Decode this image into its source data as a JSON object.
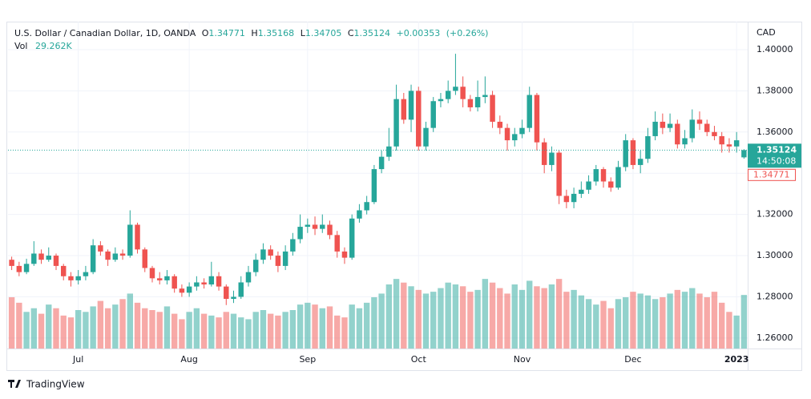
{
  "header": {
    "symbol": "U.S. Dollar / Canadian Dollar, 1D, OANDA",
    "o": "O",
    "h": "H",
    "l": "L",
    "c": "C",
    "change": "+0.00353",
    "change_pct": "(+0.26%)",
    "vol": "Vol",
    "vol_value": "29.262K",
    "countdown": "14:50:08",
    "currency": "CAD",
    "brand": "TradingView"
  },
  "chart_data": {
    "type": "candlestick",
    "up_color": "#26a69a",
    "down_color": "#ef5350",
    "categories": [
      null,
      null,
      null,
      null,
      null,
      null,
      null,
      null,
      null,
      "Jul",
      null,
      null,
      null,
      null,
      null,
      null,
      null,
      null,
      null,
      null,
      null,
      null,
      null,
      null,
      "Aug",
      null,
      null,
      null,
      null,
      null,
      null,
      null,
      null,
      null,
      null,
      null,
      null,
      null,
      null,
      null,
      "Sep",
      null,
      null,
      null,
      null,
      null,
      null,
      null,
      null,
      null,
      null,
      null,
      null,
      null,
      null,
      "Oct",
      null,
      null,
      null,
      null,
      null,
      null,
      null,
      null,
      null,
      null,
      null,
      null,
      null,
      "Nov",
      null,
      null,
      null,
      null,
      null,
      null,
      null,
      null,
      null,
      null,
      null,
      null,
      null,
      null,
      "Dec",
      null,
      null,
      null,
      null,
      null,
      null,
      null,
      null,
      null,
      null,
      null,
      null,
      null,
      "2023",
      null
    ],
    "open": [
      1.298,
      1.295,
      1.292,
      1.296,
      1.301,
      1.298,
      1.3,
      1.295,
      1.29,
      1.288,
      1.29,
      1.292,
      1.305,
      1.302,
      1.298,
      1.301,
      1.3,
      1.315,
      1.303,
      1.294,
      1.289,
      1.288,
      1.29,
      1.284,
      1.282,
      1.285,
      1.287,
      1.286,
      1.29,
      1.285,
      1.279,
      1.28,
      1.287,
      1.292,
      1.298,
      1.303,
      1.3,
      1.295,
      1.302,
      1.308,
      1.314,
      1.315,
      1.313,
      1.315,
      1.31,
      1.302,
      1.299,
      1.318,
      1.322,
      1.326,
      1.342,
      1.348,
      1.353,
      1.376,
      1.366,
      1.38,
      1.353,
      1.362,
      1.375,
      1.376,
      1.38,
      1.382,
      1.376,
      1.372,
      1.377,
      1.378,
      1.365,
      1.362,
      1.356,
      1.359,
      1.362,
      1.378,
      1.355,
      1.344,
      1.35,
      1.329,
      1.326,
      1.33,
      1.332,
      1.336,
      1.342,
      1.336,
      1.333,
      1.343,
      1.356,
      1.344,
      1.347,
      1.358,
      1.365,
      1.362,
      1.364,
      1.354,
      1.357,
      1.366,
      1.364,
      1.36,
      1.358,
      1.354,
      1.353,
      1.34771
    ],
    "high": [
      1.2995,
      1.297,
      1.2985,
      1.307,
      1.303,
      1.304,
      1.301,
      1.296,
      1.292,
      1.293,
      1.295,
      1.308,
      1.307,
      1.303,
      1.304,
      1.303,
      1.322,
      1.316,
      1.304,
      1.295,
      1.292,
      1.293,
      1.291,
      1.286,
      1.287,
      1.29,
      1.289,
      1.297,
      1.292,
      1.286,
      1.283,
      1.29,
      1.295,
      1.301,
      1.306,
      1.305,
      1.302,
      1.305,
      1.311,
      1.32,
      1.318,
      1.319,
      1.32,
      1.317,
      1.312,
      1.304,
      1.32,
      1.325,
      1.329,
      1.344,
      1.351,
      1.362,
      1.383,
      1.379,
      1.383,
      1.382,
      1.365,
      1.377,
      1.379,
      1.385,
      1.398,
      1.387,
      1.378,
      1.385,
      1.387,
      1.38,
      1.368,
      1.364,
      1.362,
      1.366,
      1.382,
      1.379,
      1.357,
      1.353,
      1.351,
      1.332,
      1.333,
      1.336,
      1.339,
      1.344,
      1.343,
      1.338,
      1.346,
      1.359,
      1.357,
      1.351,
      1.362,
      1.37,
      1.369,
      1.369,
      1.366,
      1.361,
      1.371,
      1.37,
      1.366,
      1.363,
      1.36,
      1.357,
      1.36,
      1.35168
    ],
    "low": [
      1.293,
      1.29,
      1.291,
      1.295,
      1.296,
      1.297,
      1.293,
      1.288,
      1.285,
      1.286,
      1.288,
      1.291,
      1.3,
      1.295,
      1.297,
      1.298,
      1.299,
      1.301,
      1.292,
      1.287,
      1.286,
      1.286,
      1.282,
      1.28,
      1.28,
      1.283,
      1.284,
      1.285,
      1.283,
      1.276,
      1.277,
      1.279,
      1.285,
      1.29,
      1.296,
      1.298,
      1.292,
      1.293,
      1.3,
      1.306,
      1.311,
      1.31,
      1.311,
      1.308,
      1.299,
      1.296,
      1.298,
      1.316,
      1.32,
      1.325,
      1.34,
      1.346,
      1.351,
      1.364,
      1.36,
      1.351,
      1.351,
      1.36,
      1.372,
      1.374,
      1.378,
      1.372,
      1.37,
      1.37,
      1.374,
      1.362,
      1.359,
      1.351,
      1.353,
      1.357,
      1.36,
      1.351,
      1.34,
      1.341,
      1.325,
      1.323,
      1.323,
      1.328,
      1.33,
      1.334,
      1.333,
      1.331,
      1.332,
      1.341,
      1.342,
      1.34,
      1.345,
      1.356,
      1.359,
      1.36,
      1.352,
      1.352,
      1.355,
      1.361,
      1.358,
      1.356,
      1.35,
      1.35,
      1.35,
      1.34705
    ],
    "close": [
      1.295,
      1.292,
      1.296,
      1.301,
      1.298,
      1.3,
      1.295,
      1.29,
      1.288,
      1.29,
      1.292,
      1.305,
      1.302,
      1.298,
      1.301,
      1.3,
      1.315,
      1.303,
      1.294,
      1.289,
      1.288,
      1.29,
      1.284,
      1.282,
      1.285,
      1.287,
      1.286,
      1.29,
      1.285,
      1.279,
      1.28,
      1.287,
      1.292,
      1.298,
      1.303,
      1.3,
      1.295,
      1.302,
      1.308,
      1.314,
      1.315,
      1.313,
      1.315,
      1.31,
      1.302,
      1.299,
      1.318,
      1.322,
      1.326,
      1.342,
      1.348,
      1.353,
      1.376,
      1.366,
      1.38,
      1.353,
      1.362,
      1.375,
      1.376,
      1.38,
      1.382,
      1.376,
      1.372,
      1.377,
      1.378,
      1.365,
      1.362,
      1.356,
      1.359,
      1.362,
      1.378,
      1.355,
      1.344,
      1.35,
      1.329,
      1.326,
      1.33,
      1.332,
      1.336,
      1.342,
      1.336,
      1.333,
      1.343,
      1.356,
      1.344,
      1.347,
      1.358,
      1.365,
      1.362,
      1.364,
      1.354,
      1.357,
      1.366,
      1.364,
      1.36,
      1.358,
      1.354,
      1.353,
      1.356,
      1.35124
    ],
    "volume": [
      28000,
      25000,
      20000,
      22000,
      19000,
      24000,
      22000,
      18000,
      17000,
      21000,
      20000,
      23000,
      26000,
      22000,
      24000,
      27000,
      30000,
      25000,
      22000,
      21000,
      20000,
      23000,
      19000,
      16000,
      20000,
      22000,
      19000,
      18000,
      17000,
      20000,
      19000,
      17000,
      16000,
      20000,
      21000,
      19000,
      18000,
      20000,
      21000,
      24000,
      25000,
      24000,
      22000,
      23000,
      18000,
      17000,
      24000,
      22000,
      25000,
      28000,
      30000,
      35000,
      38000,
      36000,
      34000,
      32000,
      30000,
      31000,
      33000,
      36000,
      35000,
      34000,
      31000,
      32000,
      38000,
      36000,
      33000,
      30000,
      35000,
      32000,
      37000,
      34000,
      33000,
      35000,
      38000,
      31000,
      32000,
      29000,
      27000,
      24000,
      26000,
      22000,
      27000,
      28000,
      31000,
      30000,
      29000,
      27000,
      28000,
      30000,
      32000,
      31000,
      33000,
      30000,
      28000,
      31000,
      25000,
      20000,
      18000,
      29262
    ],
    "ylim": [
      1.2549,
      1.4136
    ],
    "yticks": [
      {
        "value": 1.26,
        "label": "1.26000"
      },
      {
        "value": 1.28,
        "label": "1.28000"
      },
      {
        "value": 1.3,
        "label": "1.30000"
      },
      {
        "value": 1.32,
        "label": "1.32000"
      },
      {
        "value": 1.34,
        "label": "1.34000"
      },
      {
        "value": 1.36,
        "label": "1.36000"
      },
      {
        "value": 1.38,
        "label": "1.38000"
      },
      {
        "value": 1.4,
        "label": "1.40000"
      }
    ],
    "volume_lim": [
      0,
      70000
    ],
    "grid": true
  }
}
